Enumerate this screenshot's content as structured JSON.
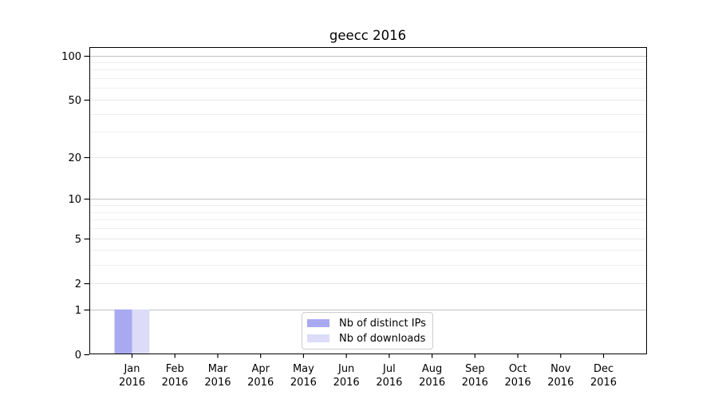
{
  "chart_data": {
    "type": "bar",
    "title": "geecc 2016",
    "categories": [
      "Jan 2016",
      "Feb 2016",
      "Mar 2016",
      "Apr 2016",
      "May 2016",
      "Jun 2016",
      "Jul 2016",
      "Aug 2016",
      "Sep 2016",
      "Oct 2016",
      "Nov 2016",
      "Dec 2016"
    ],
    "series": [
      {
        "name": "Nb of distinct IPs",
        "color": "#a9a9f1",
        "values": [
          1,
          0,
          0,
          0,
          0,
          0,
          0,
          0,
          0,
          0,
          0,
          0
        ]
      },
      {
        "name": "Nb of downloads",
        "color": "#dcdcf9",
        "values": [
          1,
          0,
          0,
          0,
          0,
          0,
          0,
          0,
          0,
          0,
          0,
          0
        ]
      }
    ],
    "yscale": "log1p",
    "ylim": [
      0,
      114
    ],
    "yticks": [
      0,
      1,
      2,
      5,
      10,
      20,
      50,
      100
    ],
    "yminorticks": [
      3,
      4,
      6,
      7,
      8,
      9,
      30,
      40,
      60,
      70,
      80,
      90
    ],
    "grid": "horizontal",
    "legend_position": "lower center"
  }
}
